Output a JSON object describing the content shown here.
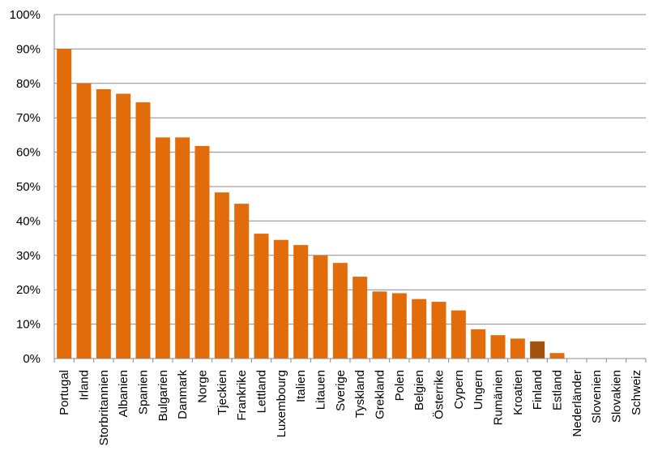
{
  "chart_data": {
    "type": "bar",
    "title": "",
    "xlabel": "",
    "ylabel": "",
    "ylim": [
      0,
      100
    ],
    "yticks": [
      0,
      10,
      20,
      30,
      40,
      50,
      60,
      70,
      80,
      90,
      100
    ],
    "ytick_labels": [
      "0%",
      "10%",
      "20%",
      "30%",
      "40%",
      "50%",
      "60%",
      "70%",
      "80%",
      "90%",
      "100%"
    ],
    "grid": true,
    "legend": "none",
    "bar_color": "#E36C0A",
    "highlight_color": "#A0520E",
    "highlight_category": "Finland",
    "categories": [
      "Portugal",
      "Irland",
      "Storbritannien",
      "Albanien",
      "Spanien",
      "Bulgarien",
      "Danmark",
      "Norge",
      "Tjeckien",
      "Frankrike",
      "Lettland",
      "Luxembourg",
      "Italien",
      "Litauen",
      "Sverige",
      "Tyskland",
      "Grekland",
      "Polen",
      "Belgien",
      "Österrike",
      "Cypern",
      "Ungern",
      "Rumänien",
      "Kroatien",
      "Finland",
      "Estland",
      "Nederländer",
      "Slovenien",
      "Slovakien",
      "Schweiz"
    ],
    "values": [
      90,
      80,
      78.3,
      77,
      74.5,
      64.3,
      64.3,
      61.8,
      48.3,
      45,
      36.3,
      34.5,
      33,
      30,
      27.8,
      23.8,
      19.5,
      19,
      17.3,
      16.5,
      14,
      8.5,
      6.8,
      5.8,
      5,
      1.6,
      0,
      0,
      0,
      0
    ]
  }
}
